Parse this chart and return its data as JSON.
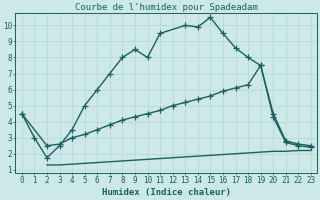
{
  "title": "Courbe de l'humidex pour Spadeadam",
  "xlabel": "Humidex (Indice chaleur)",
  "bg_color": "#cce8e8",
  "line_color": "#1a6060",
  "grid_color": "#b8d8d8",
  "xlim": [
    -0.5,
    23.5
  ],
  "ylim": [
    0.8,
    10.8
  ],
  "xticks": [
    0,
    1,
    2,
    3,
    4,
    5,
    6,
    7,
    8,
    9,
    10,
    11,
    12,
    13,
    14,
    15,
    16,
    17,
    18,
    19,
    20,
    21,
    22,
    23
  ],
  "yticks": [
    1,
    2,
    3,
    4,
    5,
    6,
    7,
    8,
    9,
    10
  ],
  "line1_x": [
    0,
    1,
    2,
    3,
    4,
    5,
    6,
    7,
    8,
    9,
    10,
    11,
    13,
    14,
    15,
    16,
    17,
    18,
    19,
    20,
    21,
    22,
    23
  ],
  "line1_y": [
    4.5,
    3.0,
    1.75,
    2.5,
    3.5,
    5.0,
    6.0,
    7.0,
    8.0,
    8.5,
    8.0,
    9.5,
    10.0,
    9.9,
    10.5,
    9.5,
    8.6,
    8.0,
    7.5,
    4.5,
    2.8,
    2.6,
    2.5
  ],
  "line2_x": [
    0,
    2,
    3,
    4,
    5,
    6,
    7,
    8,
    9,
    10,
    11,
    12,
    13,
    14,
    15,
    16,
    17,
    18,
    19,
    20,
    21,
    22,
    23
  ],
  "line2_y": [
    4.5,
    2.5,
    2.6,
    3.0,
    3.2,
    3.5,
    3.8,
    4.1,
    4.3,
    4.5,
    4.7,
    5.0,
    5.2,
    5.4,
    5.6,
    5.9,
    6.1,
    6.3,
    7.5,
    4.3,
    2.7,
    2.5,
    2.4
  ],
  "line3_x": [
    2,
    3,
    4,
    5,
    6,
    7,
    8,
    9,
    10,
    11,
    12,
    13,
    14,
    15,
    16,
    17,
    18,
    19,
    20,
    21,
    22,
    23
  ],
  "line3_y": [
    1.3,
    1.3,
    1.35,
    1.4,
    1.45,
    1.5,
    1.55,
    1.6,
    1.65,
    1.7,
    1.75,
    1.8,
    1.85,
    1.9,
    1.95,
    2.0,
    2.05,
    2.1,
    2.15,
    2.15,
    2.2,
    2.2
  ],
  "marker": "+",
  "markersize": 4,
  "linewidth": 1.0,
  "title_fontsize": 6.5,
  "label_fontsize": 6.5,
  "tick_fontsize": 5.5
}
